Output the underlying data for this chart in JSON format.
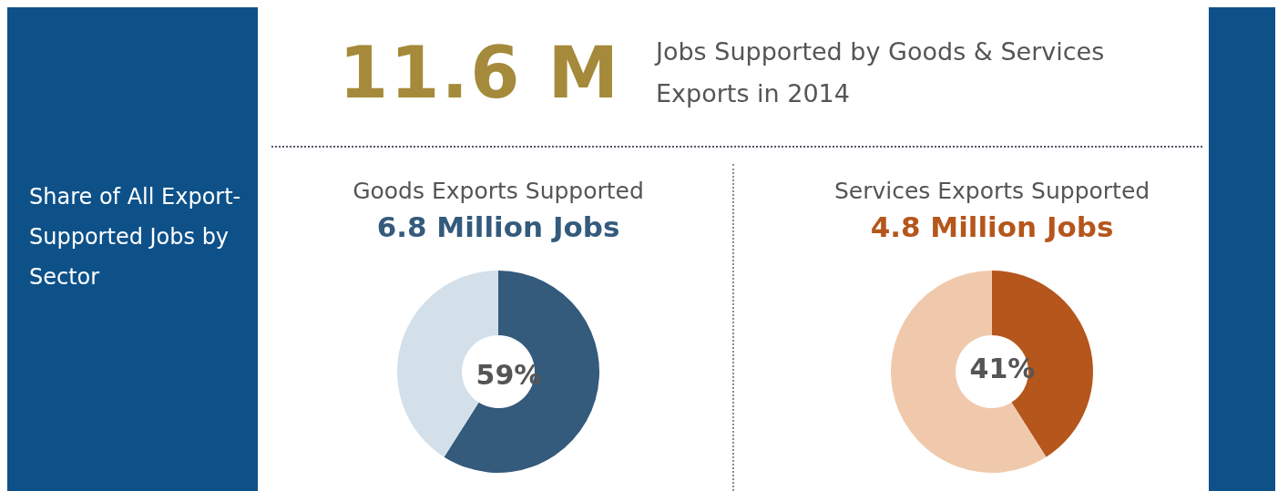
{
  "chart_data": [
    {
      "type": "other",
      "title": "11.6 M",
      "subtitle": "Jobs Supported by Goods & Services Exports in 2014",
      "annotations": [
        "Share of All Export-Supported Jobs by Sector"
      ]
    },
    {
      "type": "donut",
      "title": "Goods Exports Supported",
      "subtitle": "6.8 Million Jobs",
      "categories": [
        null,
        null
      ],
      "values": [
        59,
        41
      ],
      "colors": [
        "#345a7c",
        "#d3e0ea"
      ],
      "value_labels": [
        "59%",
        null
      ]
    },
    {
      "type": "donut",
      "title": "Services Exports Supported",
      "subtitle": "4.8 Million Jobs",
      "categories": [
        null,
        null
      ],
      "values": [
        41,
        59
      ],
      "colors": [
        "#b5561c",
        "#f0c9ad"
      ],
      "value_labels": [
        "41%",
        null
      ]
    }
  ]
}
